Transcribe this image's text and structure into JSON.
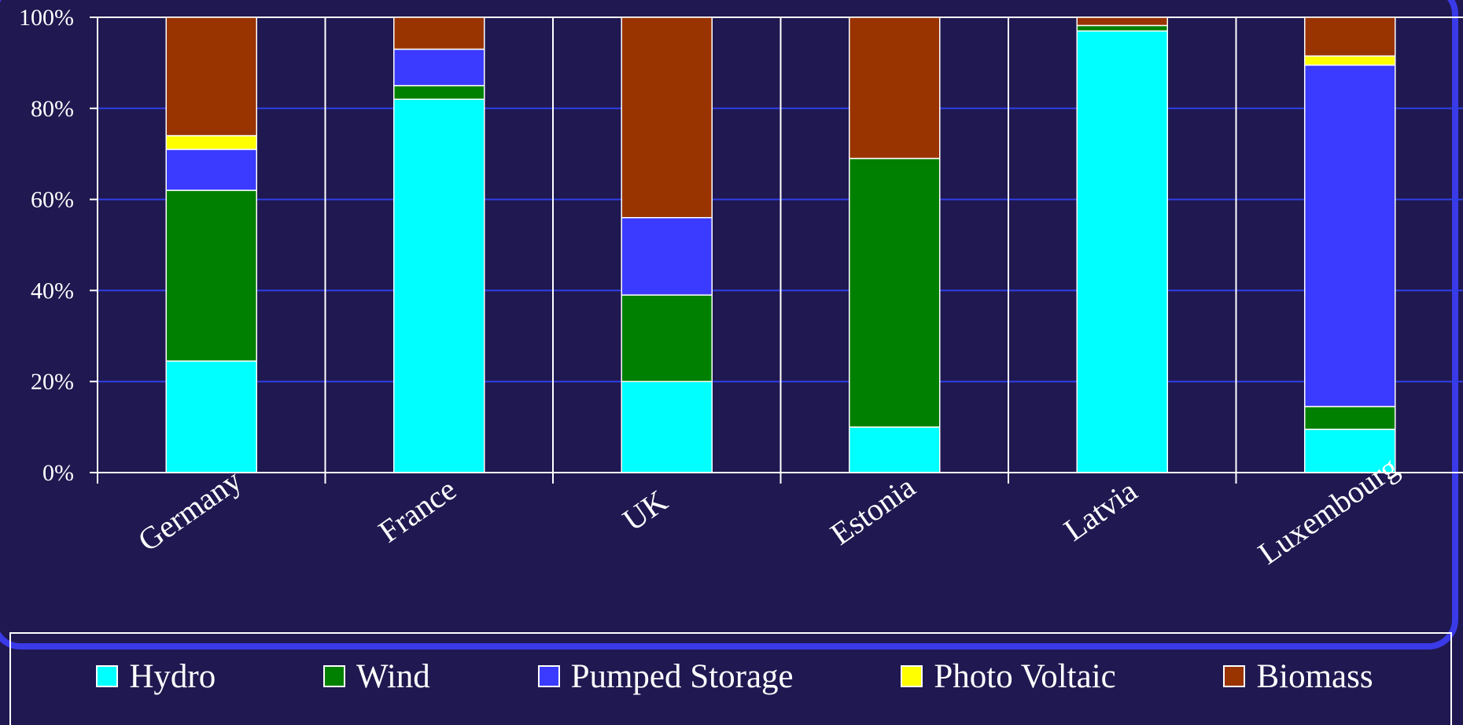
{
  "chart_data": {
    "type": "bar",
    "stacked": true,
    "normalized": true,
    "categories": [
      "Germany",
      "France",
      "UK",
      "Estonia",
      "Latvia",
      "Luxembourg"
    ],
    "series": [
      {
        "name": "Hydro",
        "color": "#00ffff",
        "values": [
          24.5,
          82,
          20,
          10,
          97,
          9.5
        ]
      },
      {
        "name": "Wind",
        "color": "#008000",
        "values": [
          37.5,
          3,
          19,
          59,
          1.2,
          5
        ]
      },
      {
        "name": "Pumped Storage",
        "color": "#3b3bff",
        "values": [
          9,
          8,
          17,
          0,
          0,
          75
        ]
      },
      {
        "name": "Photo Voltaic",
        "color": "#ffff00",
        "values": [
          3,
          0,
          0,
          0,
          0,
          2
        ]
      },
      {
        "name": "Biomass",
        "color": "#993300",
        "values": [
          26,
          7,
          44,
          31,
          1.8,
          8.5
        ]
      }
    ],
    "yticks": [
      "0%",
      "20%",
      "40%",
      "60%",
      "80%",
      "100%"
    ],
    "ylim": [
      0,
      100
    ],
    "grid": true,
    "legend_position": "bottom"
  }
}
